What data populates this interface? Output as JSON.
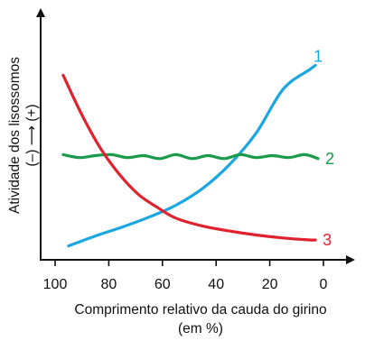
{
  "chart_data": {
    "type": "line",
    "xlabel_line1": "Comprimento relativo da cauda do girino",
    "xlabel_line2": "(em %)",
    "ylabel_line1": "Atividade dos lisossomos",
    "ylabel_line2": "(–) ⟶ (+)",
    "x_reversed": true,
    "xlim": [
      100,
      0
    ],
    "ylim": [
      0,
      100
    ],
    "x_ticks": [
      100,
      80,
      60,
      40,
      20,
      0
    ],
    "x_tick_labels": [
      "100",
      "80",
      "60",
      "40",
      "20",
      "0"
    ],
    "grid": false,
    "series": [
      {
        "name": "1",
        "color": "#1aa7e0",
        "x": [
          95,
          85,
          75,
          65,
          55,
          45,
          35,
          25,
          15,
          5,
          3
        ],
        "y": [
          7,
          12,
          16.5,
          21.5,
          27.5,
          36,
          48,
          64,
          86,
          96,
          98
        ]
      },
      {
        "name": "2",
        "color": "#1a9a4a",
        "x": [
          97,
          91,
          85,
          79,
          73,
          67,
          61,
          55,
          49,
          43,
          37,
          31,
          25,
          19,
          13,
          7,
          2
        ],
        "y": [
          53,
          51.5,
          52.5,
          53,
          51.5,
          52.5,
          51,
          53,
          51,
          52.5,
          51,
          53,
          51.5,
          52.5,
          51.5,
          53,
          51
        ]
      },
      {
        "name": "3",
        "color": "#e0212e",
        "x": [
          97,
          90,
          83,
          76,
          69,
          62,
          55,
          45,
          35,
          25,
          15,
          5,
          3
        ],
        "y": [
          93,
          73,
          56,
          43,
          33,
          26.5,
          21,
          17,
          14.5,
          12.5,
          11,
          10,
          10
        ]
      }
    ]
  }
}
